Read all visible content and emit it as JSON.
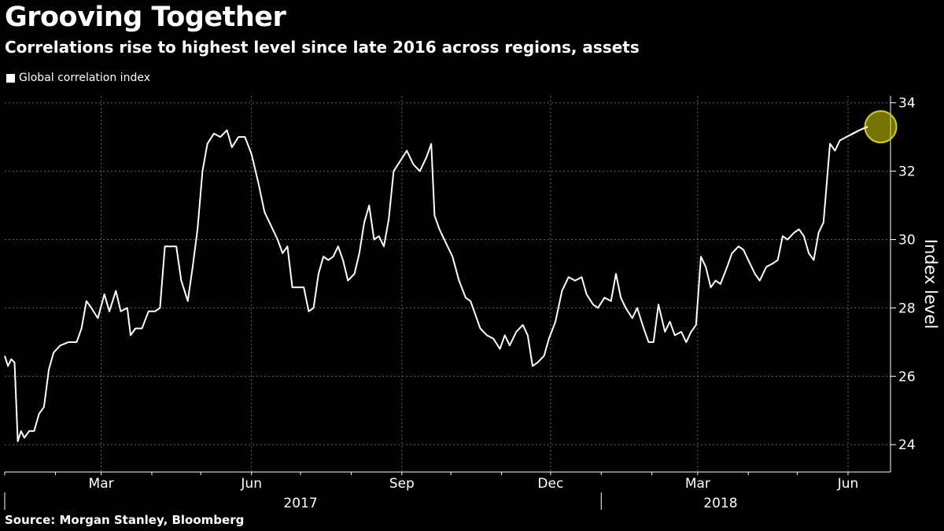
{
  "title": "Grooving Together",
  "subtitle": "Correlations rise to highest level since late 2016 across regions, assets",
  "source": "Source: Morgan Stanley, Bloomberg",
  "colors": {
    "background": "#000000",
    "line": "#ffffff",
    "highlight": "#d8d200",
    "grid": "#666666"
  },
  "chart_data": {
    "type": "line",
    "ylabel": "Index level",
    "ylim": [
      23.2,
      34.2
    ],
    "xlim": [
      "2017-01-01",
      "2018-06-27"
    ],
    "grid": true,
    "y_axis_position": "right",
    "legend": {
      "position": "top-left",
      "entries": [
        "Global correlation index"
      ]
    },
    "y_ticks": [
      24,
      26,
      28,
      30,
      32,
      34
    ],
    "y_tick_labels": [
      "24",
      "26",
      "28",
      "30",
      "32",
      "34"
    ],
    "x_tick_labels": [
      {
        "label": "Mar",
        "date": "2017-03-01"
      },
      {
        "label": "Jun",
        "date": "2017-06-01"
      },
      {
        "label": "Sep",
        "date": "2017-09-01"
      },
      {
        "label": "Dec",
        "date": "2017-12-01"
      },
      {
        "label": "Mar",
        "date": "2018-03-01"
      },
      {
        "label": "Jun",
        "date": "2018-06-01"
      }
    ],
    "year_labels": [
      {
        "label": "2017",
        "date": "2017-07-01"
      },
      {
        "label": "2018",
        "date": "2018-03-15"
      }
    ],
    "highlight": {
      "date": "2018-06-21",
      "value": 33.3
    },
    "series": [
      {
        "name": "Global correlation index",
        "points": [
          [
            "2017-01-01",
            26.6
          ],
          [
            "2017-01-03",
            26.3
          ],
          [
            "2017-01-05",
            26.5
          ],
          [
            "2017-01-07",
            26.4
          ],
          [
            "2017-01-09",
            24.1
          ],
          [
            "2017-01-11",
            24.4
          ],
          [
            "2017-01-13",
            24.2
          ],
          [
            "2017-01-16",
            24.4
          ],
          [
            "2017-01-19",
            24.4
          ],
          [
            "2017-01-22",
            24.9
          ],
          [
            "2017-01-25",
            25.1
          ],
          [
            "2017-01-28",
            26.2
          ],
          [
            "2017-01-31",
            26.7
          ],
          [
            "2017-02-04",
            26.9
          ],
          [
            "2017-02-09",
            27.0
          ],
          [
            "2017-02-14",
            27.0
          ],
          [
            "2017-02-17",
            27.4
          ],
          [
            "2017-02-20",
            28.2
          ],
          [
            "2017-02-23",
            28.0
          ],
          [
            "2017-02-27",
            27.7
          ],
          [
            "2017-03-03",
            28.4
          ],
          [
            "2017-03-06",
            27.9
          ],
          [
            "2017-03-10",
            28.5
          ],
          [
            "2017-03-13",
            27.9
          ],
          [
            "2017-03-17",
            28.0
          ],
          [
            "2017-03-19",
            27.2
          ],
          [
            "2017-03-22",
            27.4
          ],
          [
            "2017-03-26",
            27.4
          ],
          [
            "2017-03-30",
            27.9
          ],
          [
            "2017-04-03",
            27.9
          ],
          [
            "2017-04-06",
            28.0
          ],
          [
            "2017-04-09",
            29.8
          ],
          [
            "2017-04-13",
            29.8
          ],
          [
            "2017-04-16",
            29.8
          ],
          [
            "2017-04-19",
            28.8
          ],
          [
            "2017-04-23",
            28.2
          ],
          [
            "2017-04-26",
            29.2
          ],
          [
            "2017-04-29",
            30.3
          ],
          [
            "2017-05-02",
            32.0
          ],
          [
            "2017-05-05",
            32.8
          ],
          [
            "2017-05-09",
            33.1
          ],
          [
            "2017-05-13",
            33.0
          ],
          [
            "2017-05-17",
            33.2
          ],
          [
            "2017-05-20",
            32.7
          ],
          [
            "2017-05-24",
            33.0
          ],
          [
            "2017-05-28",
            33.0
          ],
          [
            "2017-06-01",
            32.5
          ],
          [
            "2017-06-05",
            31.7
          ],
          [
            "2017-06-09",
            30.8
          ],
          [
            "2017-06-13",
            30.4
          ],
          [
            "2017-06-17",
            30.0
          ],
          [
            "2017-06-20",
            29.6
          ],
          [
            "2017-06-23",
            29.8
          ],
          [
            "2017-06-26",
            28.6
          ],
          [
            "2017-06-30",
            28.6
          ],
          [
            "2017-07-03",
            28.6
          ],
          [
            "2017-07-06",
            27.9
          ],
          [
            "2017-07-09",
            28.0
          ],
          [
            "2017-07-12",
            29.0
          ],
          [
            "2017-07-15",
            29.5
          ],
          [
            "2017-07-18",
            29.4
          ],
          [
            "2017-07-21",
            29.5
          ],
          [
            "2017-07-24",
            29.8
          ],
          [
            "2017-07-27",
            29.4
          ],
          [
            "2017-07-30",
            28.8
          ],
          [
            "2017-08-03",
            29.0
          ],
          [
            "2017-08-06",
            29.6
          ],
          [
            "2017-08-09",
            30.5
          ],
          [
            "2017-08-12",
            31.0
          ],
          [
            "2017-08-15",
            30.0
          ],
          [
            "2017-08-18",
            30.1
          ],
          [
            "2017-08-21",
            29.8
          ],
          [
            "2017-08-24",
            30.6
          ],
          [
            "2017-08-27",
            32.0
          ],
          [
            "2017-08-31",
            32.3
          ],
          [
            "2017-09-04",
            32.6
          ],
          [
            "2017-09-08",
            32.2
          ],
          [
            "2017-09-12",
            32.0
          ],
          [
            "2017-09-16",
            32.4
          ],
          [
            "2017-09-19",
            32.8
          ],
          [
            "2017-09-21",
            30.7
          ],
          [
            "2017-09-24",
            30.3
          ],
          [
            "2017-09-28",
            29.9
          ],
          [
            "2017-10-02",
            29.5
          ],
          [
            "2017-10-06",
            28.8
          ],
          [
            "2017-10-10",
            28.3
          ],
          [
            "2017-10-13",
            28.2
          ],
          [
            "2017-10-16",
            27.8
          ],
          [
            "2017-10-19",
            27.4
          ],
          [
            "2017-10-23",
            27.2
          ],
          [
            "2017-10-27",
            27.1
          ],
          [
            "2017-10-31",
            26.8
          ],
          [
            "2017-11-03",
            27.2
          ],
          [
            "2017-11-06",
            26.9
          ],
          [
            "2017-11-10",
            27.3
          ],
          [
            "2017-11-14",
            27.5
          ],
          [
            "2017-11-17",
            27.2
          ],
          [
            "2017-11-20",
            26.3
          ],
          [
            "2017-11-23",
            26.4
          ],
          [
            "2017-11-27",
            26.6
          ],
          [
            "2017-11-30",
            27.1
          ],
          [
            "2017-12-04",
            27.6
          ],
          [
            "2017-12-08",
            28.5
          ],
          [
            "2017-12-12",
            28.9
          ],
          [
            "2017-12-16",
            28.8
          ],
          [
            "2017-12-20",
            28.9
          ],
          [
            "2017-12-23",
            28.4
          ],
          [
            "2017-12-27",
            28.1
          ],
          [
            "2017-12-30",
            28.0
          ],
          [
            "2018-01-03",
            28.3
          ],
          [
            "2018-01-07",
            28.2
          ],
          [
            "2018-01-10",
            29.0
          ],
          [
            "2018-01-13",
            28.3
          ],
          [
            "2018-01-16",
            28.0
          ],
          [
            "2018-01-20",
            27.7
          ],
          [
            "2018-01-23",
            28.0
          ],
          [
            "2018-01-27",
            27.4
          ],
          [
            "2018-01-30",
            27.0
          ],
          [
            "2018-02-02",
            27.0
          ],
          [
            "2018-02-05",
            28.1
          ],
          [
            "2018-02-09",
            27.3
          ],
          [
            "2018-02-12",
            27.6
          ],
          [
            "2018-02-15",
            27.2
          ],
          [
            "2018-02-19",
            27.3
          ],
          [
            "2018-02-22",
            27.0
          ],
          [
            "2018-02-25",
            27.3
          ],
          [
            "2018-02-28",
            27.5
          ],
          [
            "2018-03-03",
            29.5
          ],
          [
            "2018-03-06",
            29.2
          ],
          [
            "2018-03-09",
            28.6
          ],
          [
            "2018-03-12",
            28.8
          ],
          [
            "2018-03-15",
            28.7
          ],
          [
            "2018-03-19",
            29.2
          ],
          [
            "2018-03-22",
            29.6
          ],
          [
            "2018-03-26",
            29.8
          ],
          [
            "2018-03-29",
            29.7
          ],
          [
            "2018-04-02",
            29.3
          ],
          [
            "2018-04-05",
            29.0
          ],
          [
            "2018-04-08",
            28.8
          ],
          [
            "2018-04-12",
            29.2
          ],
          [
            "2018-04-16",
            29.3
          ],
          [
            "2018-04-19",
            29.4
          ],
          [
            "2018-04-22",
            30.1
          ],
          [
            "2018-04-25",
            30.0
          ],
          [
            "2018-04-29",
            30.2
          ],
          [
            "2018-05-02",
            30.3
          ],
          [
            "2018-05-05",
            30.1
          ],
          [
            "2018-05-08",
            29.6
          ],
          [
            "2018-05-11",
            29.4
          ],
          [
            "2018-05-14",
            30.2
          ],
          [
            "2018-05-17",
            30.5
          ],
          [
            "2018-05-21",
            32.8
          ],
          [
            "2018-05-24",
            32.6
          ],
          [
            "2018-05-27",
            32.9
          ],
          [
            "2018-05-31",
            33.0
          ],
          [
            "2018-06-04",
            33.1
          ],
          [
            "2018-06-08",
            33.2
          ],
          [
            "2018-06-13",
            33.3
          ]
        ]
      }
    ]
  }
}
